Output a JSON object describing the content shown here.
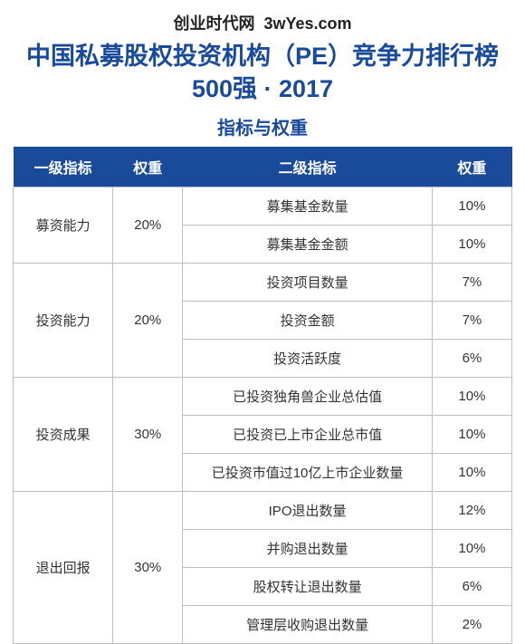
{
  "site": {
    "name": "创业时代网",
    "domain": "3wYes.com"
  },
  "title": "中国私募股权投资机构（PE）竞争力排行榜500强 · 2017",
  "subtitle": "指标与权重",
  "columns": [
    "一级指标",
    "权重",
    "二级指标",
    "权重"
  ],
  "colors": {
    "header_bg": "#1a4b9b",
    "header_fg": "#ffffff",
    "border": "#bfbfbf",
    "title_fg": "#1a4b9b"
  },
  "groups": [
    {
      "name": "募资能力",
      "weight": "20%",
      "subs": [
        {
          "name": "募集基金数量",
          "weight": "10%"
        },
        {
          "name": "募集基金金额",
          "weight": "10%"
        }
      ]
    },
    {
      "name": "投资能力",
      "weight": "20%",
      "subs": [
        {
          "name": "投资项目数量",
          "weight": "7%"
        },
        {
          "name": "投资金额",
          "weight": "7%"
        },
        {
          "name": "投资活跃度",
          "weight": "6%"
        }
      ]
    },
    {
      "name": "投资成果",
      "weight": "30%",
      "subs": [
        {
          "name": "已投资独角兽企业总估值",
          "weight": "10%"
        },
        {
          "name": "已投资已上市企业总市值",
          "weight": "10%"
        },
        {
          "name": "已投资市值过10亿上市企业数量",
          "weight": "10%"
        }
      ]
    },
    {
      "name": "退出回报",
      "weight": "30%",
      "subs": [
        {
          "name": "IPO退出数量",
          "weight": "12%"
        },
        {
          "name": "并购退出数量",
          "weight": "10%"
        },
        {
          "name": "股权转让退出数量",
          "weight": "6%"
        },
        {
          "name": "管理层收购退出数量",
          "weight": "2%"
        }
      ]
    }
  ]
}
